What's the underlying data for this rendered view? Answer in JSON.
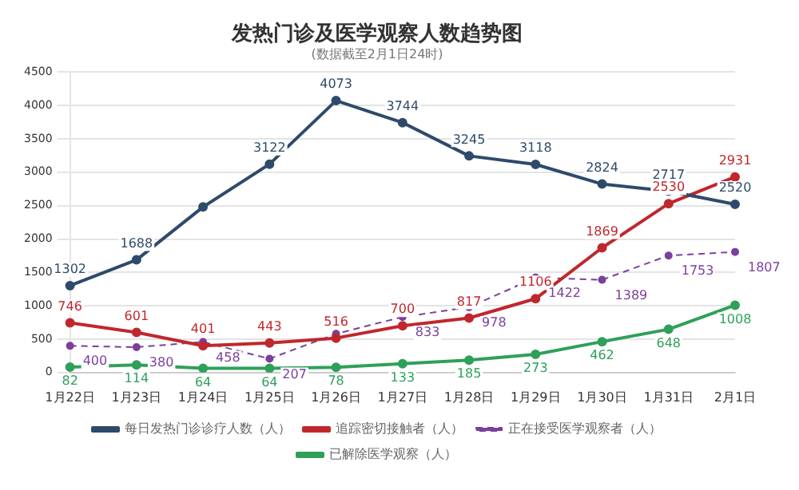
{
  "chart_data": {
    "type": "line",
    "title": "发热门诊及医学观察人数趋势图",
    "subtitle": "(数据截至2月1日24时)",
    "categories": [
      "1月22日",
      "1月23日",
      "1月24日",
      "1月25日",
      "1月26日",
      "1月27日",
      "1月28日",
      "1月29日",
      "1月30日",
      "1月31日",
      "2月1日"
    ],
    "series": [
      {
        "name": "每日发热门诊诊疗人数（人）",
        "color": "#2e4a6b",
        "values": [
          1302,
          1688,
          2480,
          3122,
          4073,
          3744,
          3245,
          3118,
          2824,
          2717,
          2520
        ],
        "value_labels": [
          "1302",
          "1688",
          null,
          "3122",
          "4073",
          "3744",
          "3245",
          "3118",
          "2824",
          "2717",
          "2520"
        ]
      },
      {
        "name": "追踪密切接触者（人）",
        "color": "#c0272d",
        "values": [
          746,
          601,
          401,
          443,
          516,
          700,
          817,
          1106,
          1869,
          2530,
          2931
        ],
        "value_labels": [
          "746",
          "601",
          "401",
          "443",
          "516",
          "700",
          "817",
          "1106",
          "1869",
          "2530",
          "2931"
        ]
      },
      {
        "name": "正在接受医学观察者（人）",
        "color": "#7b3f9e",
        "line_style": "dashed",
        "values": [
          400,
          380,
          458,
          207,
          580,
          833,
          978,
          1422,
          1389,
          1753,
          1807
        ],
        "value_labels": [
          "400",
          "380",
          "458",
          "207",
          null,
          "833",
          "978",
          "1422",
          "1389",
          "1753",
          "1807"
        ]
      },
      {
        "name": "已解除医学观察（人）",
        "color": "#2ea05a",
        "values": [
          82,
          114,
          64,
          64,
          78,
          133,
          185,
          273,
          462,
          648,
          1008
        ],
        "value_labels": [
          "82",
          "114",
          "64",
          "64",
          "78",
          "133",
          "185",
          "273",
          "462",
          "648",
          "1008"
        ]
      }
    ],
    "ylim": [
      0,
      4500
    ],
    "yticks": [
      0,
      500,
      1000,
      1500,
      2000,
      2500,
      3000,
      3500,
      4000,
      4500
    ],
    "grid": "y",
    "legend": "bottom",
    "marker": "circle"
  }
}
